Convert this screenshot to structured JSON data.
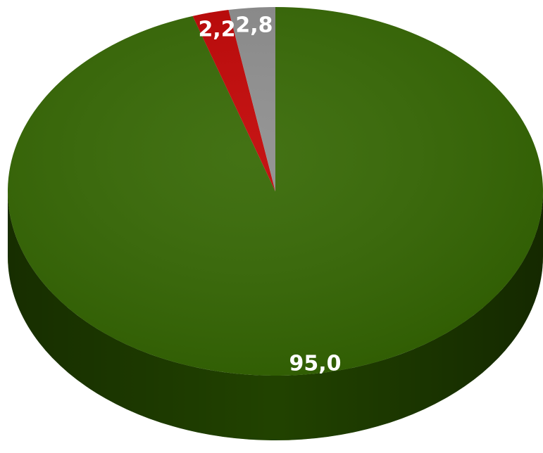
{
  "chart_data": {
    "type": "pie",
    "values": [
      95.0,
      2.2,
      2.8
    ],
    "value_labels": [
      "95,0",
      "2,2",
      "2,8"
    ],
    "colors": [
      "#336600",
      "#c00000",
      "#8c8c8c"
    ]
  }
}
